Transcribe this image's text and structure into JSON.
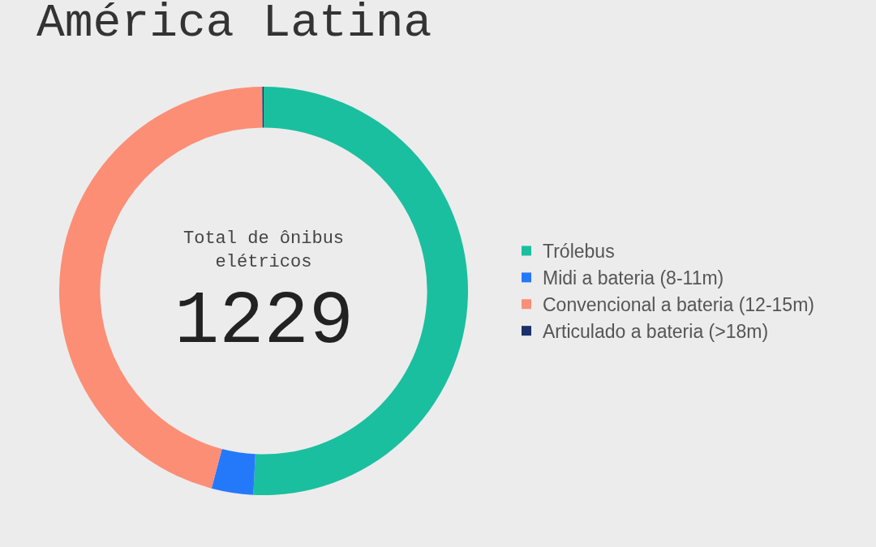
{
  "chart_data": {
    "type": "donut",
    "title": "América Latina",
    "categories": [
      "Trólebus",
      "Midi a bateria (8-11m)",
      "Convencional a bateria (12-15m)",
      "Articulado a bateria (>18m)"
    ],
    "values": [
      50.8,
      3.3,
      45.8,
      0.1
    ],
    "colors": [
      "#1abf9f",
      "#2479fb",
      "#fc8e76",
      "#1b2f6b"
    ],
    "annotations": [
      "Total de ônibus elétricos",
      "1229"
    ],
    "legend": "right"
  }
}
